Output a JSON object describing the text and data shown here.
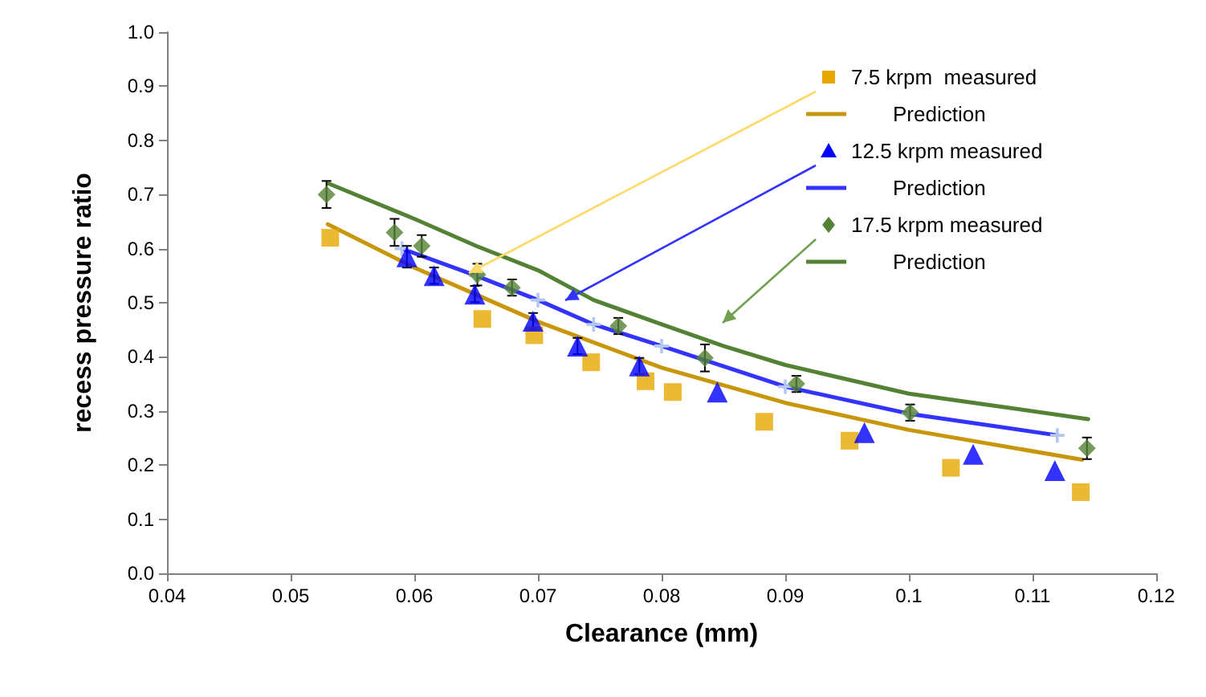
{
  "chart_data": {
    "type": "scatter",
    "xlabel": "Clearance (mm)",
    "ylabel": "recess pressure ratio",
    "xlim": [
      0.04,
      0.12
    ],
    "xticks": [
      0.04,
      0.05,
      0.06,
      0.07,
      0.08,
      0.09,
      0.1,
      0.11,
      0.12
    ],
    "ylim": [
      0,
      1
    ],
    "yticks": [
      {
        "value": 0,
        "label": "0.0"
      },
      {
        "value": 0.1,
        "label": "0.1"
      },
      {
        "value": 0.2,
        "label": "0.2"
      },
      {
        "value": 0.3,
        "label": "0.3"
      },
      {
        "value": 0.4,
        "label": "0.4"
      },
      {
        "value": 0.5,
        "label": "0.5"
      },
      {
        "value": 0.6,
        "label": "0.6"
      },
      {
        "value": 0.7,
        "label": "0.7"
      },
      {
        "value": 0.8,
        "label": "0.8"
      },
      {
        "value": 0.9,
        "label": "0.9"
      },
      {
        "value": 1,
        "label": "1.0"
      }
    ],
    "grid": false,
    "legend": "top right",
    "line_style": "solid",
    "series": [
      {
        "name": "7.5 krpm  measured",
        "marker": "square",
        "color": "#e6a800",
        "x": [
          0.0532,
          0.0655,
          0.0697,
          0.0743,
          0.0787,
          0.0809,
          0.0883,
          0.0952,
          0.1034,
          0.1139
        ],
        "values": [
          0.62,
          0.47,
          0.44,
          0.39,
          0.355,
          0.335,
          0.28,
          0.245,
          0.195,
          0.15
        ]
      },
      {
        "name": "Prediction",
        "type": "line",
        "marker": "none",
        "color": "#c8960a",
        "x": [
          0.053,
          0.06,
          0.065,
          0.07,
          0.08,
          0.09,
          0.1,
          0.114
        ],
        "values": [
          0.645,
          0.565,
          0.515,
          0.465,
          0.38,
          0.315,
          0.265,
          0.21
        ]
      },
      {
        "name": "12.5 krpm measured",
        "marker": "triangle",
        "color": "#0000ff",
        "x": [
          0.0594,
          0.0616,
          0.0649,
          0.0696,
          0.0732,
          0.0782,
          0.0845,
          0.0964,
          0.1052,
          0.1118
        ],
        "values": [
          0.585,
          0.55,
          0.516,
          0.466,
          0.42,
          0.383,
          0.335,
          0.26,
          0.22,
          0.19
        ],
        "errors": [
          0.02,
          0.015,
          0.015,
          0.015,
          0.015,
          0.015,
          null,
          null,
          null,
          null
        ]
      },
      {
        "name": "Prediction",
        "type": "line",
        "marker": "cross",
        "color": "#3333ff",
        "x": [
          0.059,
          0.065,
          0.07,
          0.0745,
          0.08,
          0.09,
          0.1,
          0.112
        ],
        "values": [
          0.6,
          0.55,
          0.505,
          0.46,
          0.42,
          0.345,
          0.295,
          0.255
        ]
      },
      {
        "name": "17.5 krpm measured",
        "marker": "diamond",
        "color": "#548235",
        "x": [
          0.0529,
          0.0584,
          0.0606,
          0.0651,
          0.0679,
          0.0765,
          0.0835,
          0.0909,
          0.1001,
          0.1144
        ],
        "values": [
          0.7,
          0.63,
          0.605,
          0.552,
          0.528,
          0.457,
          0.398,
          0.35,
          0.297,
          0.231
        ],
        "errors": [
          0.025,
          0.025,
          0.02,
          0.02,
          0.015,
          0.015,
          0.025,
          0.015,
          0.015,
          0.02
        ]
      },
      {
        "name": "Prediction",
        "type": "line",
        "marker": "none",
        "color": "#548235",
        "x": [
          0.0531,
          0.06,
          0.065,
          0.07,
          0.0745,
          0.08,
          0.085,
          0.09,
          0.1,
          0.1145
        ],
        "values": [
          0.72,
          0.655,
          0.605,
          0.56,
          0.505,
          0.46,
          0.42,
          0.385,
          0.332,
          0.285
        ]
      }
    ]
  }
}
